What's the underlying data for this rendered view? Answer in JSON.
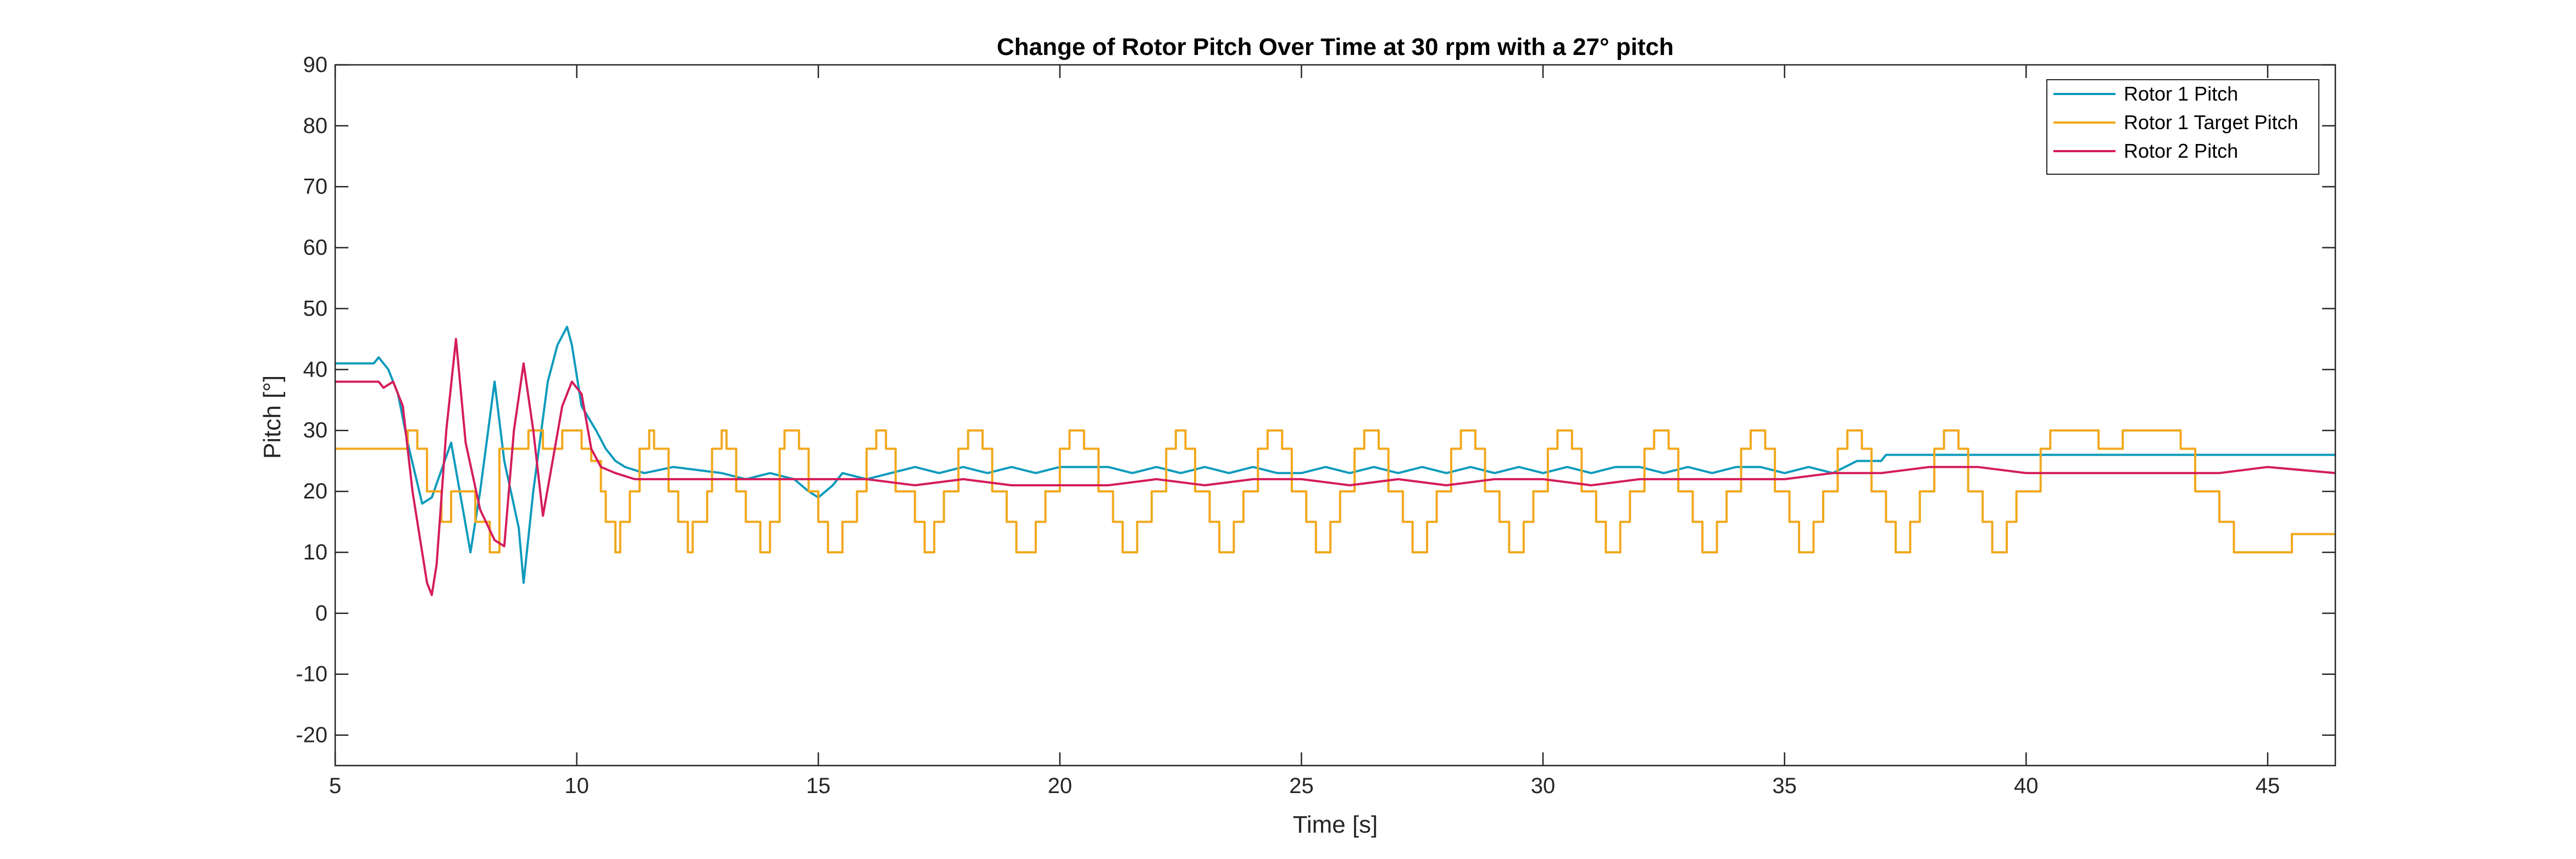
{
  "chart_data": {
    "type": "line",
    "title": "Change of Rotor Pitch Over Time at 30 rpm with a 27° pitch",
    "xlabel": "Time [s]",
    "ylabel": "Pitch [°]",
    "xlim": [
      5,
      46.4
    ],
    "ylim": [
      -25,
      90
    ],
    "xticks": [
      5,
      10,
      15,
      20,
      25,
      30,
      35,
      40,
      45
    ],
    "yticks": [
      -20,
      -10,
      0,
      10,
      20,
      30,
      40,
      50,
      60,
      70,
      80,
      90
    ],
    "grid": false,
    "legend_position": "top-right",
    "series": [
      {
        "name": "Rotor 1 Pitch",
        "color": "#0e9bbc",
        "step": false,
        "x": [
          5,
          5.8,
          5.9,
          6.1,
          6.3,
          6.5,
          6.8,
          7.0,
          7.4,
          7.8,
          8.0,
          8.3,
          8.5,
          8.8,
          8.9,
          9.1,
          9.4,
          9.6,
          9.8,
          9.9,
          10.1,
          10.4,
          10.6,
          10.8,
          11.0,
          11.4,
          12.0,
          13.0,
          13.5,
          14.0,
          14.5,
          14.8,
          15.0,
          15.3,
          15.5,
          16.0,
          16.5,
          17.0,
          17.5,
          18.0,
          18.5,
          19.0,
          19.5,
          20.0,
          20.5,
          21.0,
          21.5,
          22.0,
          22.5,
          23.0,
          23.5,
          24.0,
          24.5,
          25.0,
          25.5,
          26.0,
          26.5,
          27.0,
          27.5,
          28.0,
          28.5,
          29.0,
          29.5,
          30.0,
          30.5,
          31.0,
          31.5,
          32.0,
          32.5,
          33.0,
          33.5,
          34.0,
          34.5,
          35.0,
          35.5,
          36.0,
          36.5,
          37.0,
          37.1,
          38.0,
          40.0,
          42.0,
          44.0,
          46.4
        ],
        "values": [
          41,
          41,
          42,
          40,
          36,
          28,
          18,
          19,
          28,
          10,
          20,
          38,
          25,
          14,
          5,
          20,
          38,
          44,
          47,
          44,
          34,
          30,
          27,
          25,
          24,
          23,
          24,
          23,
          22,
          23,
          22,
          20,
          19,
          21,
          23,
          22,
          23,
          24,
          23,
          24,
          23,
          24,
          23,
          24,
          24,
          24,
          23,
          24,
          23,
          24,
          23,
          24,
          23,
          23,
          24,
          23,
          24,
          23,
          24,
          23,
          24,
          23,
          24,
          23,
          24,
          23,
          24,
          24,
          23,
          24,
          23,
          24,
          24,
          23,
          24,
          23,
          25,
          25,
          26,
          26,
          26,
          26,
          26,
          26
        ]
      },
      {
        "name": "Rotor 1 Target Pitch",
        "color": "#f2a81d",
        "step": true,
        "x": [
          5,
          6.5,
          6.7,
          6.9,
          7.2,
          7.4,
          7.9,
          8.2,
          8.4,
          9.0,
          9.3,
          9.7,
          10.1,
          10.3,
          10.5,
          10.6,
          10.8,
          10.9,
          11.1,
          11.3,
          11.5,
          11.6,
          11.9,
          12.1,
          12.3,
          12.4,
          12.7,
          12.8,
          13.0,
          13.1,
          13.3,
          13.5,
          13.8,
          14.0,
          14.2,
          14.3,
          14.6,
          14.8,
          15.0,
          15.2,
          15.5,
          15.8,
          16.0,
          16.2,
          16.4,
          16.6,
          17.0,
          17.2,
          17.4,
          17.6,
          17.9,
          18.1,
          18.4,
          18.6,
          18.9,
          19.1,
          19.5,
          19.7,
          20.0,
          20.2,
          20.5,
          20.8,
          21.1,
          21.3,
          21.6,
          21.9,
          22.2,
          22.4,
          22.6,
          22.8,
          23.1,
          23.3,
          23.6,
          23.8,
          24.1,
          24.3,
          24.6,
          24.8,
          25.1,
          25.3,
          25.6,
          25.8,
          26.1,
          26.3,
          26.6,
          26.8,
          27.1,
          27.3,
          27.6,
          27.8,
          28.1,
          28.3,
          28.6,
          28.8,
          29.1,
          29.3,
          29.6,
          29.8,
          30.1,
          30.3,
          30.6,
          30.8,
          31.1,
          31.3,
          31.6,
          31.8,
          32.1,
          32.3,
          32.6,
          32.8,
          33.1,
          33.3,
          33.6,
          33.8,
          34.1,
          34.3,
          34.6,
          34.8,
          35.1,
          35.3,
          35.6,
          35.8,
          36.1,
          36.3,
          36.6,
          36.8,
          37.1,
          37.3,
          37.6,
          37.8,
          38.1,
          38.3,
          38.6,
          38.8,
          39.1,
          39.3,
          39.6,
          39.8,
          40.3,
          40.5,
          41.5,
          42.0,
          43.2,
          43.5,
          44.0,
          44.3,
          45.5,
          46.4
        ],
        "values": [
          27,
          30,
          27,
          20,
          15,
          20,
          15,
          10,
          27,
          30,
          27,
          30,
          27,
          25,
          20,
          15,
          10,
          15,
          20,
          27,
          30,
          27,
          20,
          15,
          10,
          15,
          20,
          27,
          30,
          27,
          20,
          15,
          10,
          15,
          27,
          30,
          27,
          20,
          15,
          10,
          15,
          20,
          27,
          30,
          27,
          20,
          15,
          10,
          15,
          20,
          27,
          30,
          27,
          20,
          15,
          10,
          15,
          20,
          27,
          30,
          27,
          20,
          15,
          10,
          15,
          20,
          27,
          30,
          27,
          20,
          15,
          10,
          15,
          20,
          27,
          30,
          27,
          20,
          15,
          10,
          15,
          20,
          27,
          30,
          27,
          20,
          15,
          10,
          15,
          20,
          27,
          30,
          27,
          20,
          15,
          10,
          15,
          20,
          27,
          30,
          27,
          20,
          15,
          10,
          15,
          20,
          27,
          30,
          27,
          20,
          15,
          10,
          15,
          20,
          27,
          30,
          27,
          20,
          15,
          10,
          15,
          20,
          27,
          30,
          27,
          20,
          15,
          10,
          15,
          20,
          27,
          30,
          27,
          20,
          15,
          10,
          15,
          20,
          27,
          30,
          27,
          30,
          27,
          20,
          15,
          10,
          13,
          13
        ]
      },
      {
        "name": "Rotor 2 Pitch",
        "color": "#d41c5c",
        "step": false,
        "x": [
          5,
          5.9,
          6.0,
          6.2,
          6.4,
          6.6,
          6.9,
          7.0,
          7.1,
          7.3,
          7.5,
          7.7,
          8.0,
          8.3,
          8.5,
          8.7,
          8.9,
          9.1,
          9.3,
          9.5,
          9.7,
          9.9,
          10.1,
          10.3,
          10.5,
          10.8,
          11.2,
          12.0,
          13.0,
          14.0,
          15.0,
          16.0,
          17.0,
          18.0,
          19.0,
          20.0,
          21.0,
          22.0,
          23.0,
          24.0,
          25.0,
          26.0,
          27.0,
          28.0,
          29.0,
          30.0,
          31.0,
          32.0,
          33.0,
          34.0,
          35.0,
          36.0,
          37.0,
          38.0,
          39.0,
          40.0,
          41.0,
          42.0,
          43.0,
          44.0,
          45.0,
          46.4
        ],
        "values": [
          38,
          38,
          37,
          38,
          34,
          20,
          5,
          3,
          8,
          30,
          45,
          28,
          17,
          12,
          11,
          30,
          41,
          30,
          16,
          25,
          34,
          38,
          36,
          27,
          24,
          23,
          22,
          22,
          22,
          22,
          22,
          22,
          21,
          22,
          21,
          21,
          21,
          22,
          21,
          22,
          22,
          21,
          22,
          21,
          22,
          22,
          21,
          22,
          22,
          22,
          22,
          23,
          23,
          24,
          24,
          23,
          23,
          23,
          23,
          23,
          24,
          23
        ]
      }
    ]
  }
}
